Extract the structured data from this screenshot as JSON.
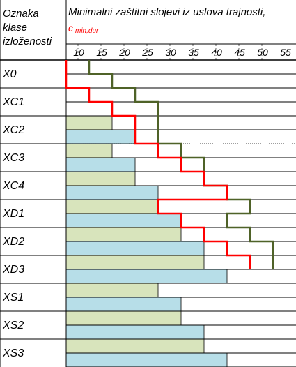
{
  "header": {
    "column_label": "Oznaka klase izloženosti",
    "column_label_lines": [
      "Oznaka",
      "klase",
      "izloženosti"
    ],
    "title": "Minimalni zaštitni slojevi iz uslova trajnosti,",
    "symbol_main": "c",
    "symbol_sub": "min,dur"
  },
  "chart_data": {
    "type": "bar",
    "orientation": "horizontal",
    "x_ticks": [
      10,
      15,
      20,
      25,
      30,
      35,
      40,
      45,
      50,
      55
    ],
    "xlim": [
      10,
      55
    ],
    "categories": [
      "X0",
      "XC1",
      "XC2",
      "XC3",
      "XC4",
      "XD1",
      "XD2",
      "XD3",
      "XS1",
      "XS2",
      "XS3"
    ],
    "series": [
      {
        "values": [
          [
            10,
            10
          ],
          [
            10,
            10
          ],
          [
            20,
            25
          ],
          [
            20,
            25
          ],
          [
            25,
            30
          ],
          [
            30,
            35
          ],
          [
            35,
            40
          ],
          [
            40,
            45
          ],
          [
            30,
            35
          ],
          [
            35,
            40
          ],
          [
            40,
            45
          ]
        ],
        "colors": [
          "#d8e4bc",
          "#b7dee8"
        ]
      }
    ],
    "steps": {
      "red": [
        10,
        10,
        15,
        20,
        25,
        25,
        30,
        35,
        40,
        45,
        30,
        35,
        40,
        45,
        50
      ],
      "green": [
        15,
        20,
        25,
        30,
        30,
        30,
        35,
        40,
        40,
        45,
        50,
        45,
        50,
        55
      ]
    },
    "step_colors": {
      "red": "#ff0000",
      "green": "#4f6228"
    },
    "grid": true
  },
  "colors": {
    "green_fill": "#d8e4bc",
    "blue_fill": "#b7dee8",
    "red_step": "#ff0000",
    "green_step": "#4f6228"
  }
}
